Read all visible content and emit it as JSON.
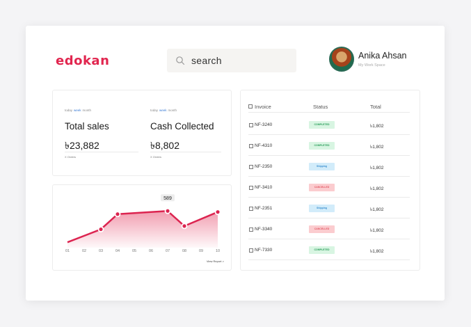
{
  "app": {
    "logo": "edokan"
  },
  "search": {
    "text": "search"
  },
  "profile": {
    "name": "Anika Ahsan",
    "subtitle": "My Work Space"
  },
  "kpis": [
    {
      "periods": [
        "today",
        "week",
        "month"
      ],
      "active_period": "week",
      "label": "Total sales",
      "value": "৳23,882",
      "sub": "X Orders"
    },
    {
      "periods": [
        "today",
        "week",
        "month"
      ],
      "active_period": "week",
      "label": "Cash Collected",
      "value": "৳8,802",
      "sub": "X Orders"
    }
  ],
  "chart_data": {
    "type": "area",
    "categories": [
      "01",
      "02",
      "03",
      "04",
      "05",
      "06",
      "07",
      "08",
      "09",
      "10"
    ],
    "series": [
      {
        "x": [
          "01",
          "03",
          "04",
          "07",
          "08",
          "10"
        ],
        "values": [
          300,
          420,
          560,
          589,
          450,
          580
        ]
      }
    ],
    "annotation": {
      "x": "07",
      "label": "589"
    },
    "ylim": [
      250,
      700
    ],
    "color": "#dc2450",
    "view_report_label": "View Report >"
  },
  "table": {
    "columns": [
      "Invoice",
      "Status",
      "Total"
    ],
    "rows": [
      {
        "invoice": "NF-3240",
        "status": "COMPLETED",
        "status_kind": "complete",
        "total": "৳1,802"
      },
      {
        "invoice": "NF-4310",
        "status": "COMPLETED",
        "status_kind": "complete",
        "total": "৳1,802"
      },
      {
        "invoice": "NF-2350",
        "status": "Shipping",
        "status_kind": "shipping",
        "total": "৳1,802"
      },
      {
        "invoice": "NF-3410",
        "status": "CANCELLED",
        "status_kind": "cancelled",
        "total": "৳1,802"
      },
      {
        "invoice": "NF-2351",
        "status": "Shipping",
        "status_kind": "shipping",
        "total": "৳1,802"
      },
      {
        "invoice": "NF-3340",
        "status": "CANCELLED",
        "status_kind": "cancelled",
        "total": "৳1,802"
      },
      {
        "invoice": "NF-7330",
        "status": "COMPLETED",
        "status_kind": "complete",
        "total": "৳1,802"
      }
    ]
  },
  "colors": {
    "brand": "#e1264f",
    "badge_complete_bg": "#d8f5e2",
    "badge_complete_fg": "#2a9d5a",
    "badge_shipping_bg": "#d2ecfa",
    "badge_shipping_fg": "#3b8fd0",
    "badge_cancelled_bg": "#fbcccf",
    "badge_cancelled_fg": "#e35a66"
  }
}
